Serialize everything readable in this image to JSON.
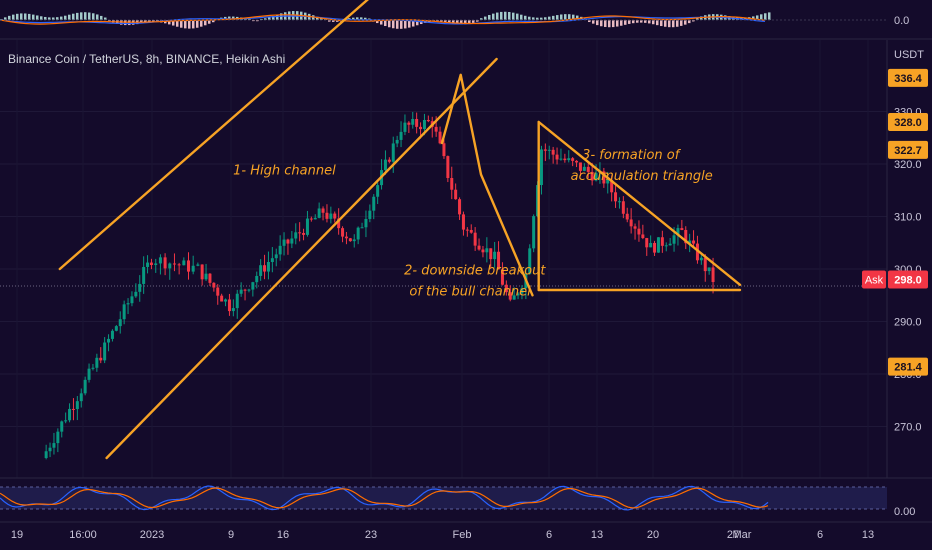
{
  "header": {
    "symbol_title": "Binance Coin / TetherUS, 8h, BINANCE, Heikin Ashi",
    "currency": "USDT"
  },
  "macd_pane": {
    "zero_label": "0.0"
  },
  "stoch_pane": {
    "zero_label": "0.00"
  },
  "chart_data": {
    "type": "candlestick",
    "title": "Binance Coin / TetherUS, 8h, BINANCE, Heikin Ashi",
    "ylim": [
      262,
      343
    ],
    "y_ticks": [
      270.0,
      280.0,
      290.0,
      300.0,
      310.0,
      320.0,
      330.0
    ],
    "x_ticks": [
      "19",
      "16:00",
      "2023",
      "9",
      "16",
      "23",
      "Feb",
      "6",
      "13",
      "20",
      "27",
      "Mar",
      "6",
      "13"
    ],
    "price_labels": [
      {
        "text": "336.4",
        "value": 336.4
      },
      {
        "text": "328.0",
        "value": 328.0
      },
      {
        "text": "322.7",
        "value": 322.7
      },
      {
        "text": "298.0",
        "value": 298.0,
        "tag": "Ask"
      },
      {
        "text": "281.4",
        "value": 281.4
      }
    ],
    "ask_label": "Ask",
    "ask_price": 298.0,
    "segments": [
      {
        "from": [
          2,
          264
        ],
        "to": [
          6,
          285
        ],
        "n": 16
      },
      {
        "from": [
          6,
          285
        ],
        "to": [
          9,
          302
        ],
        "n": 12
      },
      {
        "from": [
          9,
          302
        ],
        "to": [
          12,
          300
        ],
        "n": 10
      },
      {
        "from": [
          12,
          300
        ],
        "to": [
          14,
          293
        ],
        "n": 8
      },
      {
        "from": [
          14,
          293
        ],
        "to": [
          17,
          303
        ],
        "n": 12
      },
      {
        "from": [
          17,
          303
        ],
        "to": [
          20,
          311
        ],
        "n": 12
      },
      {
        "from": [
          20,
          311
        ],
        "to": [
          22,
          305
        ],
        "n": 8
      },
      {
        "from": [
          22,
          305
        ],
        "to": [
          25,
          327
        ],
        "n": 12
      },
      {
        "from": [
          25,
          327
        ],
        "to": [
          27,
          328
        ],
        "n": 8
      },
      {
        "from": [
          27,
          328
        ],
        "to": [
          29,
          308
        ],
        "n": 8
      },
      {
        "from": [
          29,
          308
        ],
        "to": [
          31,
          302
        ],
        "n": 8
      },
      {
        "from": [
          31,
          302
        ],
        "to": [
          32,
          293
        ],
        "n": 4
      },
      {
        "from": [
          32,
          293
        ],
        "to": [
          33,
          299
        ],
        "n": 4
      },
      {
        "from": [
          33,
          299
        ],
        "to": [
          34,
          323
        ],
        "n": 4
      },
      {
        "from": [
          34,
          323
        ],
        "to": [
          38,
          317
        ],
        "n": 16
      },
      {
        "from": [
          38,
          317
        ],
        "to": [
          41,
          304
        ],
        "n": 12
      },
      {
        "from": [
          41,
          304
        ],
        "to": [
          43,
          307
        ],
        "n": 8
      },
      {
        "from": [
          43,
          307
        ],
        "to": [
          45,
          298
        ],
        "n": 8
      }
    ],
    "drawings": [
      {
        "name": "upper-channel-line",
        "from": [
          3,
          300
        ],
        "to": [
          28,
          365
        ]
      },
      {
        "name": "lower-channel-line",
        "from": [
          6,
          264
        ],
        "to": [
          31,
          340
        ]
      },
      {
        "name": "breakout-arrow",
        "points": [
          [
            27.5,
            324
          ],
          [
            28.7,
            337
          ],
          [
            30,
            318
          ],
          [
            33.3,
            295
          ]
        ]
      },
      {
        "name": "triangle-left-side",
        "from": [
          33.7,
          296
        ],
        "to": [
          33.7,
          328
        ]
      },
      {
        "name": "triangle-top-side",
        "from": [
          33.7,
          328
        ],
        "to": [
          46.6,
          297
        ]
      },
      {
        "name": "triangle-base",
        "from": [
          33.7,
          296
        ],
        "to": [
          46.6,
          296
        ]
      }
    ],
    "annotations": [
      {
        "text": "1- High channel",
        "at": [
          17.4,
          318
        ]
      },
      {
        "text": "2- downside breakout",
        "at": [
          29.6,
          299
        ]
      },
      {
        "text": "of the bull channel",
        "at": [
          29.3,
          295
        ]
      },
      {
        "text": "3- formation of",
        "at": [
          39.6,
          321
        ]
      },
      {
        "text": "accumulation triangle",
        "at": [
          40.3,
          317
        ]
      }
    ],
    "colors": {
      "up": "#089981",
      "down": "#f23645",
      "drawing": "#f7a325",
      "ask": "#f23645",
      "background": "#140b2b"
    }
  }
}
